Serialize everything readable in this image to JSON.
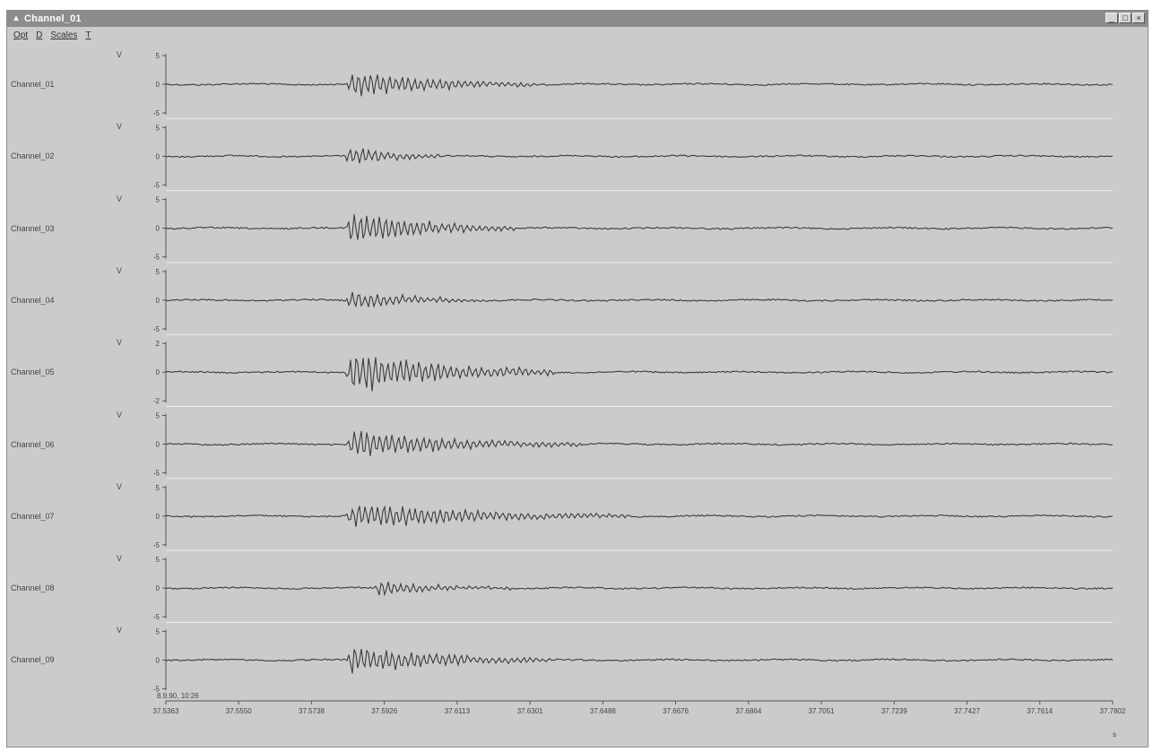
{
  "window": {
    "title": "Channel_01",
    "controls": [
      "_",
      "□",
      "×"
    ]
  },
  "menu": {
    "items": [
      "Opt",
      "D",
      "Scales",
      "T"
    ]
  },
  "channels": [
    {
      "label": "Channel_01",
      "unit": "V",
      "ticks": [
        "5",
        "0",
        "-5"
      ]
    },
    {
      "label": "Channel_02",
      "unit": "V",
      "ticks": [
        "5",
        "0",
        "-5"
      ]
    },
    {
      "label": "Channel_03",
      "unit": "V",
      "ticks": [
        "5",
        "0",
        "-5"
      ]
    },
    {
      "label": "Channel_04",
      "unit": "V",
      "ticks": [
        "5",
        "0",
        "-5"
      ]
    },
    {
      "label": "Channel_05",
      "unit": "V",
      "ticks": [
        "2",
        "0",
        "-2"
      ]
    },
    {
      "label": "Channel_06",
      "unit": "V",
      "ticks": [
        "5",
        "0",
        "-5"
      ]
    },
    {
      "label": "Channel_07",
      "unit": "V",
      "ticks": [
        "5",
        "0",
        "-5"
      ]
    },
    {
      "label": "Channel_08",
      "unit": "V",
      "ticks": [
        "5",
        "0",
        "-5"
      ]
    },
    {
      "label": "Channel_09",
      "unit": "V",
      "ticks": [
        "5",
        "0",
        "-5"
      ]
    }
  ],
  "x_axis": {
    "ticks": [
      "37.5363",
      "37.5550",
      "37.5738",
      "37.5926",
      "37.6113",
      "37.6301",
      "37.6488",
      "37.6676",
      "37.6864",
      "37.7051",
      "37.7239",
      "37.7427",
      "37.7614",
      "37.7802"
    ],
    "unit": "s",
    "timestamp": "8.9.90, 10:26"
  }
}
